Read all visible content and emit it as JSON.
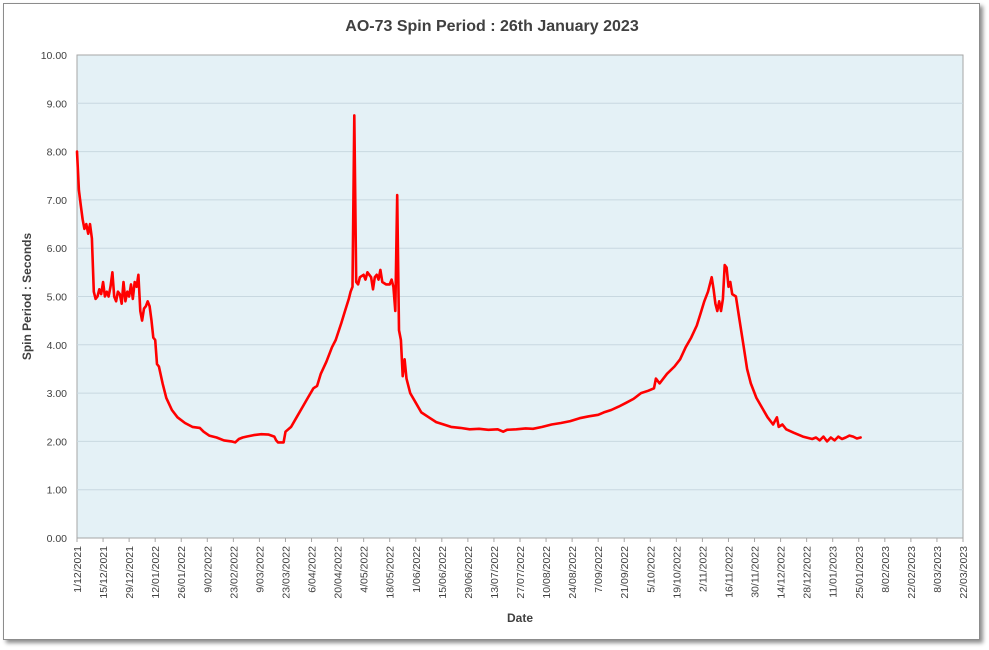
{
  "chart_data": {
    "type": "line",
    "title": "AO-73 Spin Period : 26th January 2023",
    "xlabel": "Date",
    "ylabel": "Spin Period : Seconds",
    "ylim": [
      0,
      10
    ],
    "yticks": [
      "0.00",
      "1.00",
      "2.00",
      "3.00",
      "4.00",
      "5.00",
      "6.00",
      "7.00",
      "8.00",
      "9.00",
      "10.00"
    ],
    "xlim": [
      "2021-12-01",
      "2023-03-22"
    ],
    "xticks": [
      "1/12/2021",
      "15/12/2021",
      "29/12/2021",
      "12/01/2022",
      "26/01/2022",
      "9/02/2022",
      "23/02/2022",
      "9/03/2022",
      "23/03/2022",
      "6/04/2022",
      "20/04/2022",
      "4/05/2022",
      "18/05/2022",
      "1/06/2022",
      "15/06/2022",
      "29/06/2022",
      "13/07/2022",
      "27/07/2022",
      "10/08/2022",
      "24/08/2022",
      "7/09/2022",
      "21/09/2022",
      "5/10/2022",
      "19/10/2022",
      "2/11/2022",
      "16/11/2022",
      "30/11/2022",
      "14/12/2022",
      "28/12/2022",
      "11/01/2023",
      "25/01/2023",
      "8/02/2023",
      "22/02/2023",
      "8/03/2023",
      "22/03/2023"
    ],
    "grid": "horizontal",
    "colors": {
      "plot_bg": "#e4f1f6",
      "line": "#ff0000",
      "grid": "#c8d8e0"
    },
    "series": [
      {
        "color": "#ff0000",
        "points": [
          [
            "2021-12-01",
            8.0
          ],
          [
            "2021-12-02",
            7.2
          ],
          [
            "2021-12-03",
            6.9
          ],
          [
            "2021-12-04",
            6.6
          ],
          [
            "2021-12-05",
            6.4
          ],
          [
            "2021-12-06",
            6.5
          ],
          [
            "2021-12-07",
            6.3
          ],
          [
            "2021-12-08",
            6.5
          ],
          [
            "2021-12-09",
            6.2
          ],
          [
            "2021-12-10",
            5.1
          ],
          [
            "2021-12-11",
            4.95
          ],
          [
            "2021-12-12",
            5.0
          ],
          [
            "2021-12-13",
            5.15
          ],
          [
            "2021-12-14",
            5.05
          ],
          [
            "2021-12-15",
            5.3
          ],
          [
            "2021-12-16",
            5.0
          ],
          [
            "2021-12-17",
            5.1
          ],
          [
            "2021-12-18",
            5.0
          ],
          [
            "2021-12-19",
            5.2
          ],
          [
            "2021-12-20",
            5.5
          ],
          [
            "2021-12-21",
            5.0
          ],
          [
            "2021-12-22",
            4.9
          ],
          [
            "2021-12-23",
            5.1
          ],
          [
            "2021-12-24",
            5.05
          ],
          [
            "2021-12-25",
            4.85
          ],
          [
            "2021-12-26",
            5.3
          ],
          [
            "2021-12-27",
            4.9
          ],
          [
            "2021-12-28",
            5.1
          ],
          [
            "2021-12-29",
            5.0
          ],
          [
            "2021-12-30",
            5.25
          ],
          [
            "2021-12-31",
            4.95
          ],
          [
            "2022-01-01",
            5.3
          ],
          [
            "2022-01-02",
            5.2
          ],
          [
            "2022-01-03",
            5.45
          ],
          [
            "2022-01-04",
            4.7
          ],
          [
            "2022-01-05",
            4.5
          ],
          [
            "2022-01-06",
            4.75
          ],
          [
            "2022-01-07",
            4.8
          ],
          [
            "2022-01-08",
            4.9
          ],
          [
            "2022-01-09",
            4.8
          ],
          [
            "2022-01-10",
            4.5
          ],
          [
            "2022-01-11",
            4.15
          ],
          [
            "2022-01-12",
            4.1
          ],
          [
            "2022-01-13",
            3.6
          ],
          [
            "2022-01-14",
            3.55
          ],
          [
            "2022-01-16",
            3.2
          ],
          [
            "2022-01-18",
            2.9
          ],
          [
            "2022-01-21",
            2.65
          ],
          [
            "2022-01-24",
            2.5
          ],
          [
            "2022-01-28",
            2.38
          ],
          [
            "2022-02-01",
            2.3
          ],
          [
            "2022-02-05",
            2.28
          ],
          [
            "2022-02-07",
            2.2
          ],
          [
            "2022-02-10",
            2.12
          ],
          [
            "2022-02-14",
            2.08
          ],
          [
            "2022-02-18",
            2.02
          ],
          [
            "2022-02-22",
            2.0
          ],
          [
            "2022-02-24",
            1.98
          ],
          [
            "2022-02-26",
            2.05
          ],
          [
            "2022-02-28",
            2.08
          ],
          [
            "2022-03-02",
            2.1
          ],
          [
            "2022-03-06",
            2.13
          ],
          [
            "2022-03-10",
            2.15
          ],
          [
            "2022-03-14",
            2.14
          ],
          [
            "2022-03-17",
            2.1
          ],
          [
            "2022-03-18",
            2.02
          ],
          [
            "2022-03-19",
            1.98
          ],
          [
            "2022-03-22",
            1.98
          ],
          [
            "2022-03-23",
            2.2
          ],
          [
            "2022-03-26",
            2.3
          ],
          [
            "2022-03-29",
            2.5
          ],
          [
            "2022-04-01",
            2.7
          ],
          [
            "2022-04-04",
            2.9
          ],
          [
            "2022-04-07",
            3.1
          ],
          [
            "2022-04-09",
            3.15
          ],
          [
            "2022-04-11",
            3.4
          ],
          [
            "2022-04-14",
            3.65
          ],
          [
            "2022-04-17",
            3.95
          ],
          [
            "2022-04-19",
            4.1
          ],
          [
            "2022-04-22",
            4.45
          ],
          [
            "2022-04-24",
            4.7
          ],
          [
            "2022-04-26",
            4.95
          ],
          [
            "2022-04-27",
            5.1
          ],
          [
            "2022-04-28",
            5.2
          ],
          [
            "2022-04-29",
            8.75
          ],
          [
            "2022-04-30",
            5.3
          ],
          [
            "2022-05-01",
            5.25
          ],
          [
            "2022-05-02",
            5.4
          ],
          [
            "2022-05-04",
            5.45
          ],
          [
            "2022-05-05",
            5.35
          ],
          [
            "2022-05-06",
            5.5
          ],
          [
            "2022-05-08",
            5.4
          ],
          [
            "2022-05-09",
            5.15
          ],
          [
            "2022-05-10",
            5.4
          ],
          [
            "2022-05-11",
            5.45
          ],
          [
            "2022-05-12",
            5.35
          ],
          [
            "2022-05-13",
            5.55
          ],
          [
            "2022-05-14",
            5.3
          ],
          [
            "2022-05-16",
            5.25
          ],
          [
            "2022-05-18",
            5.25
          ],
          [
            "2022-05-19",
            5.35
          ],
          [
            "2022-05-20",
            5.2
          ],
          [
            "2022-05-21",
            4.7
          ],
          [
            "2022-05-22",
            7.1
          ],
          [
            "2022-05-23",
            4.3
          ],
          [
            "2022-05-24",
            4.1
          ],
          [
            "2022-05-25",
            3.35
          ],
          [
            "2022-05-26",
            3.7
          ],
          [
            "2022-05-27",
            3.3
          ],
          [
            "2022-05-29",
            3.0
          ],
          [
            "2022-06-01",
            2.8
          ],
          [
            "2022-06-04",
            2.6
          ],
          [
            "2022-06-08",
            2.5
          ],
          [
            "2022-06-12",
            2.4
          ],
          [
            "2022-06-16",
            2.35
          ],
          [
            "2022-06-20",
            2.3
          ],
          [
            "2022-06-25",
            2.28
          ],
          [
            "2022-06-30",
            2.25
          ],
          [
            "2022-07-05",
            2.26
          ],
          [
            "2022-07-10",
            2.24
          ],
          [
            "2022-07-15",
            2.25
          ],
          [
            "2022-07-18",
            2.2
          ],
          [
            "2022-07-20",
            2.24
          ],
          [
            "2022-07-25",
            2.25
          ],
          [
            "2022-07-30",
            2.27
          ],
          [
            "2022-08-03",
            2.26
          ],
          [
            "2022-08-08",
            2.3
          ],
          [
            "2022-08-13",
            2.35
          ],
          [
            "2022-08-18",
            2.38
          ],
          [
            "2022-08-23",
            2.42
          ],
          [
            "2022-08-28",
            2.48
          ],
          [
            "2022-09-02",
            2.52
          ],
          [
            "2022-09-07",
            2.55
          ],
          [
            "2022-09-10",
            2.6
          ],
          [
            "2022-09-14",
            2.65
          ],
          [
            "2022-09-18",
            2.72
          ],
          [
            "2022-09-22",
            2.8
          ],
          [
            "2022-09-26",
            2.88
          ],
          [
            "2022-09-30",
            3.0
          ],
          [
            "2022-10-04",
            3.05
          ],
          [
            "2022-10-07",
            3.1
          ],
          [
            "2022-10-08",
            3.3
          ],
          [
            "2022-10-10",
            3.2
          ],
          [
            "2022-10-14",
            3.4
          ],
          [
            "2022-10-18",
            3.55
          ],
          [
            "2022-10-21",
            3.7
          ],
          [
            "2022-10-24",
            3.95
          ],
          [
            "2022-10-27",
            4.15
          ],
          [
            "2022-10-30",
            4.4
          ],
          [
            "2022-11-01",
            4.65
          ],
          [
            "2022-11-03",
            4.9
          ],
          [
            "2022-11-05",
            5.1
          ],
          [
            "2022-11-07",
            5.4
          ],
          [
            "2022-11-08",
            5.15
          ],
          [
            "2022-11-09",
            4.85
          ],
          [
            "2022-11-10",
            4.7
          ],
          [
            "2022-11-11",
            4.9
          ],
          [
            "2022-11-12",
            4.7
          ],
          [
            "2022-11-13",
            4.95
          ],
          [
            "2022-11-14",
            5.65
          ],
          [
            "2022-11-15",
            5.6
          ],
          [
            "2022-11-16",
            5.2
          ],
          [
            "2022-11-17",
            5.3
          ],
          [
            "2022-11-18",
            5.05
          ],
          [
            "2022-11-20",
            5.0
          ],
          [
            "2022-11-22",
            4.5
          ],
          [
            "2022-11-24",
            4.0
          ],
          [
            "2022-11-26",
            3.5
          ],
          [
            "2022-11-28",
            3.2
          ],
          [
            "2022-12-01",
            2.9
          ],
          [
            "2022-12-04",
            2.7
          ],
          [
            "2022-12-07",
            2.5
          ],
          [
            "2022-12-10",
            2.35
          ],
          [
            "2022-12-12",
            2.5
          ],
          [
            "2022-12-13",
            2.3
          ],
          [
            "2022-12-15",
            2.35
          ],
          [
            "2022-12-17",
            2.25
          ],
          [
            "2022-12-21",
            2.18
          ],
          [
            "2022-12-26",
            2.1
          ],
          [
            "2022-12-31",
            2.05
          ],
          [
            "2023-01-02",
            2.08
          ],
          [
            "2023-01-04",
            2.02
          ],
          [
            "2023-01-06",
            2.1
          ],
          [
            "2023-01-08",
            2.0
          ],
          [
            "2023-01-10",
            2.08
          ],
          [
            "2023-01-12",
            2.02
          ],
          [
            "2023-01-14",
            2.1
          ],
          [
            "2023-01-16",
            2.05
          ],
          [
            "2023-01-18",
            2.08
          ],
          [
            "2023-01-20",
            2.12
          ],
          [
            "2023-01-22",
            2.1
          ],
          [
            "2023-01-24",
            2.06
          ],
          [
            "2023-01-26",
            2.08
          ]
        ]
      }
    ]
  }
}
